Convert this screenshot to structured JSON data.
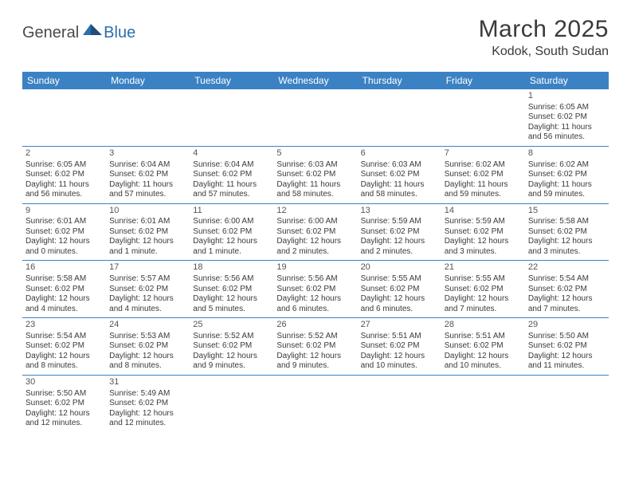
{
  "logo": {
    "part1": "General",
    "part2": "Blue"
  },
  "title": "March 2025",
  "location": "Kodok, South Sudan",
  "colors": {
    "header_bg": "#3b82c4",
    "header_text": "#ffffff",
    "border": "#3b82c4",
    "text": "#3a3a3a",
    "logo_gray": "#4a4a4a",
    "logo_blue": "#2c6fab"
  },
  "days_of_week": [
    "Sunday",
    "Monday",
    "Tuesday",
    "Wednesday",
    "Thursday",
    "Friday",
    "Saturday"
  ],
  "weeks": [
    [
      null,
      null,
      null,
      null,
      null,
      null,
      {
        "n": "1",
        "sr": "Sunrise: 6:05 AM",
        "ss": "Sunset: 6:02 PM",
        "dl": "Daylight: 11 hours and 56 minutes."
      }
    ],
    [
      {
        "n": "2",
        "sr": "Sunrise: 6:05 AM",
        "ss": "Sunset: 6:02 PM",
        "dl": "Daylight: 11 hours and 56 minutes."
      },
      {
        "n": "3",
        "sr": "Sunrise: 6:04 AM",
        "ss": "Sunset: 6:02 PM",
        "dl": "Daylight: 11 hours and 57 minutes."
      },
      {
        "n": "4",
        "sr": "Sunrise: 6:04 AM",
        "ss": "Sunset: 6:02 PM",
        "dl": "Daylight: 11 hours and 57 minutes."
      },
      {
        "n": "5",
        "sr": "Sunrise: 6:03 AM",
        "ss": "Sunset: 6:02 PM",
        "dl": "Daylight: 11 hours and 58 minutes."
      },
      {
        "n": "6",
        "sr": "Sunrise: 6:03 AM",
        "ss": "Sunset: 6:02 PM",
        "dl": "Daylight: 11 hours and 58 minutes."
      },
      {
        "n": "7",
        "sr": "Sunrise: 6:02 AM",
        "ss": "Sunset: 6:02 PM",
        "dl": "Daylight: 11 hours and 59 minutes."
      },
      {
        "n": "8",
        "sr": "Sunrise: 6:02 AM",
        "ss": "Sunset: 6:02 PM",
        "dl": "Daylight: 11 hours and 59 minutes."
      }
    ],
    [
      {
        "n": "9",
        "sr": "Sunrise: 6:01 AM",
        "ss": "Sunset: 6:02 PM",
        "dl": "Daylight: 12 hours and 0 minutes."
      },
      {
        "n": "10",
        "sr": "Sunrise: 6:01 AM",
        "ss": "Sunset: 6:02 PM",
        "dl": "Daylight: 12 hours and 1 minute."
      },
      {
        "n": "11",
        "sr": "Sunrise: 6:00 AM",
        "ss": "Sunset: 6:02 PM",
        "dl": "Daylight: 12 hours and 1 minute."
      },
      {
        "n": "12",
        "sr": "Sunrise: 6:00 AM",
        "ss": "Sunset: 6:02 PM",
        "dl": "Daylight: 12 hours and 2 minutes."
      },
      {
        "n": "13",
        "sr": "Sunrise: 5:59 AM",
        "ss": "Sunset: 6:02 PM",
        "dl": "Daylight: 12 hours and 2 minutes."
      },
      {
        "n": "14",
        "sr": "Sunrise: 5:59 AM",
        "ss": "Sunset: 6:02 PM",
        "dl": "Daylight: 12 hours and 3 minutes."
      },
      {
        "n": "15",
        "sr": "Sunrise: 5:58 AM",
        "ss": "Sunset: 6:02 PM",
        "dl": "Daylight: 12 hours and 3 minutes."
      }
    ],
    [
      {
        "n": "16",
        "sr": "Sunrise: 5:58 AM",
        "ss": "Sunset: 6:02 PM",
        "dl": "Daylight: 12 hours and 4 minutes."
      },
      {
        "n": "17",
        "sr": "Sunrise: 5:57 AM",
        "ss": "Sunset: 6:02 PM",
        "dl": "Daylight: 12 hours and 4 minutes."
      },
      {
        "n": "18",
        "sr": "Sunrise: 5:56 AM",
        "ss": "Sunset: 6:02 PM",
        "dl": "Daylight: 12 hours and 5 minutes."
      },
      {
        "n": "19",
        "sr": "Sunrise: 5:56 AM",
        "ss": "Sunset: 6:02 PM",
        "dl": "Daylight: 12 hours and 6 minutes."
      },
      {
        "n": "20",
        "sr": "Sunrise: 5:55 AM",
        "ss": "Sunset: 6:02 PM",
        "dl": "Daylight: 12 hours and 6 minutes."
      },
      {
        "n": "21",
        "sr": "Sunrise: 5:55 AM",
        "ss": "Sunset: 6:02 PM",
        "dl": "Daylight: 12 hours and 7 minutes."
      },
      {
        "n": "22",
        "sr": "Sunrise: 5:54 AM",
        "ss": "Sunset: 6:02 PM",
        "dl": "Daylight: 12 hours and 7 minutes."
      }
    ],
    [
      {
        "n": "23",
        "sr": "Sunrise: 5:54 AM",
        "ss": "Sunset: 6:02 PM",
        "dl": "Daylight: 12 hours and 8 minutes."
      },
      {
        "n": "24",
        "sr": "Sunrise: 5:53 AM",
        "ss": "Sunset: 6:02 PM",
        "dl": "Daylight: 12 hours and 8 minutes."
      },
      {
        "n": "25",
        "sr": "Sunrise: 5:52 AM",
        "ss": "Sunset: 6:02 PM",
        "dl": "Daylight: 12 hours and 9 minutes."
      },
      {
        "n": "26",
        "sr": "Sunrise: 5:52 AM",
        "ss": "Sunset: 6:02 PM",
        "dl": "Daylight: 12 hours and 9 minutes."
      },
      {
        "n": "27",
        "sr": "Sunrise: 5:51 AM",
        "ss": "Sunset: 6:02 PM",
        "dl": "Daylight: 12 hours and 10 minutes."
      },
      {
        "n": "28",
        "sr": "Sunrise: 5:51 AM",
        "ss": "Sunset: 6:02 PM",
        "dl": "Daylight: 12 hours and 10 minutes."
      },
      {
        "n": "29",
        "sr": "Sunrise: 5:50 AM",
        "ss": "Sunset: 6:02 PM",
        "dl": "Daylight: 12 hours and 11 minutes."
      }
    ],
    [
      {
        "n": "30",
        "sr": "Sunrise: 5:50 AM",
        "ss": "Sunset: 6:02 PM",
        "dl": "Daylight: 12 hours and 12 minutes."
      },
      {
        "n": "31",
        "sr": "Sunrise: 5:49 AM",
        "ss": "Sunset: 6:02 PM",
        "dl": "Daylight: 12 hours and 12 minutes."
      },
      null,
      null,
      null,
      null,
      null
    ]
  ]
}
